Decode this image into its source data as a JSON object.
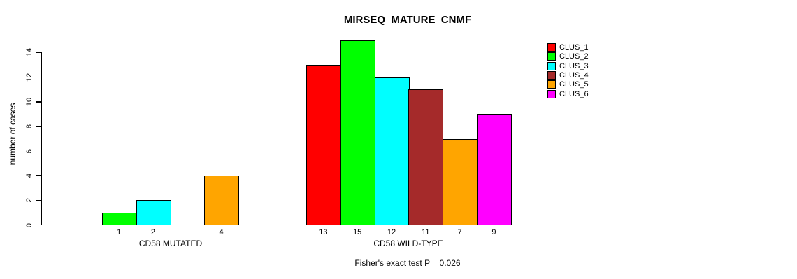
{
  "chart_data": {
    "type": "bar",
    "title": "MIRSEQ_MATURE_CNMF",
    "ylabel": "number of cases",
    "ylim": [
      0,
      15
    ],
    "yticks": [
      0,
      2,
      4,
      6,
      8,
      10,
      12,
      14
    ],
    "grid": false,
    "legend_position": "right",
    "series": [
      {
        "name": "CLUS_1",
        "color": "#FF0000"
      },
      {
        "name": "CLUS_2",
        "color": "#00FF00"
      },
      {
        "name": "CLUS_3",
        "color": "#00FFFF"
      },
      {
        "name": "CLUS_4",
        "color": "#A52A2A"
      },
      {
        "name": "CLUS_5",
        "color": "#FFA500"
      },
      {
        "name": "CLUS_6",
        "color": "#FF00FF"
      }
    ],
    "groups": [
      {
        "label": "CD58 MUTATED",
        "values": [
          0,
          1,
          2,
          0,
          4,
          0
        ],
        "bar_labels": [
          "",
          "1",
          "2",
          "",
          "4",
          ""
        ]
      },
      {
        "label": "CD58 WILD-TYPE",
        "values": [
          13,
          15,
          12,
          11,
          7,
          9
        ],
        "bar_labels": [
          "13",
          "15",
          "12",
          "11",
          "7",
          "9"
        ]
      }
    ],
    "annotation": "Fisher's exact test P = 0.026"
  }
}
